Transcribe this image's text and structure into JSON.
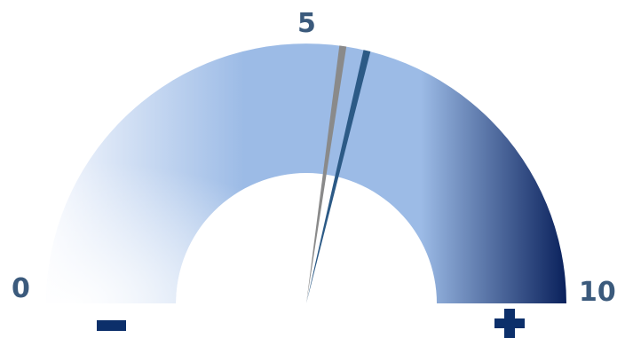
{
  "gauge": {
    "min_label": "0",
    "mid_label": "5",
    "max_label": "10",
    "min": 0,
    "max": 10,
    "needle_gray_value": 5.45,
    "needle_blue_value": 5.75,
    "colors": {
      "label": "#3b5a7c",
      "arc_light": "#f7f9fe",
      "arc_mid": "#9cbbe6",
      "arc_dark": "#0a215c",
      "needle_gray": "#8a8a8a",
      "needle_blue": "#2c5a86",
      "icon": "#0c2f6a"
    }
  },
  "icons": {
    "decrease": "minus-icon",
    "increase": "plus-icon"
  }
}
